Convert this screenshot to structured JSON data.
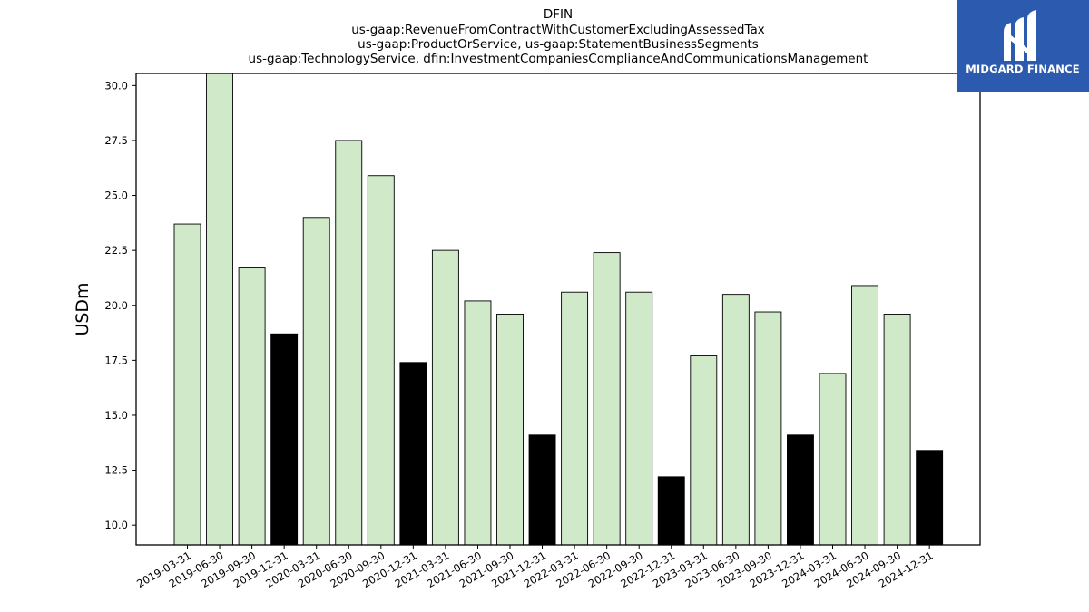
{
  "brand": {
    "name": "MIDGARD FINANCE",
    "logo_icon": "midgard-m-logo-icon",
    "background_color": "#2b5aae"
  },
  "chart_data": {
    "type": "bar",
    "title": [
      "DFIN",
      "us-gaap:RevenueFromContractWithCustomerExcludingAssessedTax",
      "us-gaap:ProductOrService, us-gaap:StatementBusinessSegments",
      "us-gaap:TechnologyService, dfin:InvestmentCompaniesComplianceAndCommunicationsManagement"
    ],
    "xlabel": "",
    "ylabel": "USDm",
    "ylim": [
      9.1,
      30.55
    ],
    "yticks": [
      10.0,
      12.5,
      15.0,
      17.5,
      20.0,
      22.5,
      25.0,
      27.5,
      30.0
    ],
    "ytick_labels": [
      "10.0",
      "12.5",
      "15.0",
      "17.5",
      "20.0",
      "22.5",
      "25.0",
      "27.5",
      "30.0"
    ],
    "grid": false,
    "categories": [
      "2019-03-31",
      "2019-06-30",
      "2019-09-30",
      "2019-12-31",
      "2020-03-31",
      "2020-06-30",
      "2020-09-30",
      "2020-12-31",
      "2021-03-31",
      "2021-06-30",
      "2021-09-30",
      "2021-12-31",
      "2022-03-31",
      "2022-06-30",
      "2022-09-30",
      "2022-12-31",
      "2023-03-31",
      "2023-06-30",
      "2023-09-30",
      "2023-12-31",
      "2024-03-31",
      "2024-06-30",
      "2024-09-30",
      "2024-12-31"
    ],
    "values": [
      23.7,
      30.8,
      21.7,
      18.7,
      24.0,
      27.5,
      25.9,
      17.4,
      22.5,
      20.2,
      19.6,
      14.1,
      20.6,
      22.4,
      20.6,
      12.2,
      17.7,
      20.5,
      19.7,
      14.1,
      16.9,
      20.9,
      19.6,
      13.4
    ],
    "colors": {
      "quarter": "#cfe9c9",
      "year_end": "#000000",
      "edge": "#000000"
    }
  }
}
